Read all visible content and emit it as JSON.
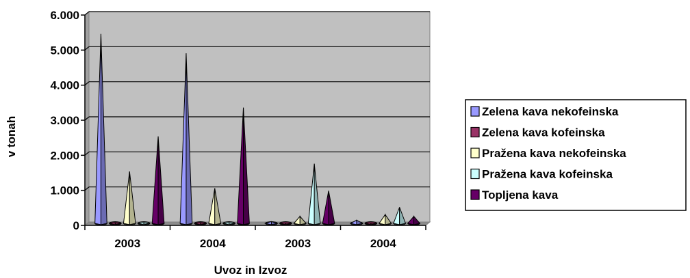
{
  "chart_data": {
    "type": "bar",
    "style": "3d-cone",
    "categories": [
      "2003",
      "2004",
      "2003",
      "2004"
    ],
    "xlabel": "Uvoz in Izvoz",
    "ylabel": "v tonah",
    "ylim": [
      0,
      6000
    ],
    "yticks": [
      "0",
      "1.000",
      "2.000",
      "3.000",
      "4.000",
      "5.000",
      "6.000"
    ],
    "grid": true,
    "legend_position": "right",
    "series": [
      {
        "name": "Zelena kava nekofeinska",
        "color": "#9999ff",
        "values": [
          5400,
          4850,
          50,
          90
        ]
      },
      {
        "name": "Zelena kava kofeinska",
        "color": "#993366",
        "values": [
          20,
          20,
          10,
          10
        ]
      },
      {
        "name": "Pražena kava nekofeinska",
        "color": "#ffffcc",
        "values": [
          1480,
          1000,
          200,
          250
        ]
      },
      {
        "name": "Pražena kava kofeinska",
        "color": "#ccffff",
        "values": [
          20,
          20,
          1700,
          460
        ]
      },
      {
        "name": "Topljena kava",
        "color": "#660066",
        "values": [
          2480,
          3300,
          930,
          200
        ]
      }
    ]
  }
}
